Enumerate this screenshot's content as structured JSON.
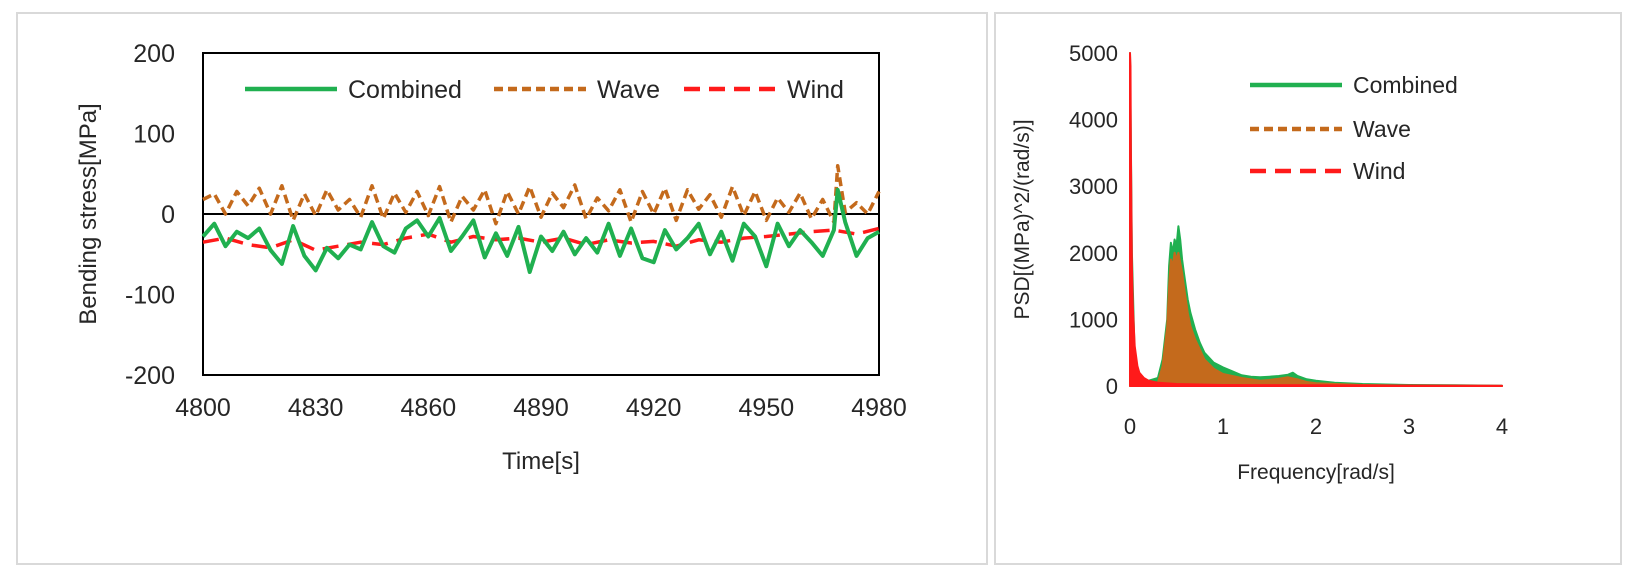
{
  "colors": {
    "combined": "#20b050",
    "wave": "#c46a1c",
    "wind": "#ff1a1a",
    "frame": "#d9d9d9"
  },
  "chart_data": [
    {
      "type": "line",
      "title": "",
      "xlabel": "Time[s]",
      "ylabel": "Bending stress[MPa]",
      "xlim": [
        4800,
        4980
      ],
      "ylim": [
        -200,
        200
      ],
      "xticks": [
        4800,
        4830,
        4860,
        4890,
        4920,
        4950,
        4980
      ],
      "yticks": [
        -200,
        -100,
        0,
        100,
        200
      ],
      "legend_position": "top",
      "series": [
        {
          "name": "Combined",
          "style": "solid",
          "x": [
            4800,
            4803,
            4806,
            4809,
            4812,
            4815,
            4818,
            4821,
            4824,
            4827,
            4830,
            4833,
            4836,
            4839,
            4842,
            4845,
            4848,
            4851,
            4854,
            4857,
            4860,
            4863,
            4866,
            4869,
            4872,
            4875,
            4878,
            4881,
            4884,
            4887,
            4890,
            4893,
            4896,
            4899,
            4902,
            4905,
            4908,
            4911,
            4914,
            4917,
            4920,
            4923,
            4926,
            4929,
            4932,
            4935,
            4938,
            4941,
            4944,
            4947,
            4950,
            4953,
            4956,
            4959,
            4962,
            4965,
            4968,
            4969,
            4971,
            4974,
            4977,
            4980
          ],
          "values": [
            -28,
            -12,
            -40,
            -22,
            -30,
            -18,
            -45,
            -62,
            -15,
            -52,
            -70,
            -42,
            -55,
            -38,
            -44,
            -10,
            -40,
            -48,
            -18,
            -8,
            -28,
            -5,
            -46,
            -28,
            -8,
            -54,
            -24,
            -52,
            -16,
            -72,
            -28,
            -46,
            -22,
            -50,
            -30,
            -48,
            -12,
            -52,
            -18,
            -55,
            -60,
            -20,
            -44,
            -30,
            -12,
            -50,
            -22,
            -58,
            -12,
            -28,
            -65,
            -12,
            -40,
            -20,
            -35,
            -52,
            -20,
            30,
            -10,
            -52,
            -30,
            -22
          ]
        },
        {
          "name": "Wave",
          "style": "dash",
          "x": [
            4800,
            4803,
            4806,
            4809,
            4812,
            4815,
            4818,
            4821,
            4824,
            4827,
            4830,
            4833,
            4836,
            4839,
            4842,
            4845,
            4848,
            4851,
            4854,
            4857,
            4860,
            4863,
            4866,
            4869,
            4872,
            4875,
            4878,
            4881,
            4884,
            4887,
            4890,
            4893,
            4896,
            4899,
            4902,
            4905,
            4908,
            4911,
            4914,
            4917,
            4920,
            4923,
            4926,
            4929,
            4932,
            4935,
            4938,
            4941,
            4944,
            4947,
            4950,
            4953,
            4956,
            4959,
            4962,
            4965,
            4968,
            4969,
            4971,
            4974,
            4977,
            4980
          ],
          "values": [
            18,
            25,
            0,
            28,
            10,
            32,
            0,
            35,
            -8,
            25,
            -2,
            30,
            5,
            18,
            -4,
            35,
            -6,
            26,
            2,
            28,
            -2,
            34,
            -10,
            22,
            5,
            30,
            -12,
            28,
            0,
            34,
            -4,
            26,
            8,
            36,
            -6,
            20,
            4,
            30,
            -10,
            28,
            0,
            32,
            -8,
            30,
            6,
            24,
            -4,
            34,
            -2,
            28,
            -8,
            20,
            2,
            26,
            -6,
            18,
            -10,
            60,
            2,
            14,
            0,
            28
          ]
        },
        {
          "name": "Wind",
          "style": "dash",
          "x": [
            4800,
            4806,
            4812,
            4818,
            4824,
            4830,
            4836,
            4842,
            4848,
            4854,
            4860,
            4866,
            4872,
            4878,
            4884,
            4890,
            4896,
            4902,
            4908,
            4914,
            4920,
            4926,
            4932,
            4938,
            4944,
            4950,
            4956,
            4962,
            4968,
            4974,
            4980
          ],
          "values": [
            -35,
            -30,
            -38,
            -42,
            -32,
            -45,
            -40,
            -35,
            -38,
            -30,
            -25,
            -35,
            -28,
            -32,
            -30,
            -35,
            -30,
            -38,
            -32,
            -36,
            -34,
            -40,
            -32,
            -35,
            -30,
            -28,
            -25,
            -22,
            -20,
            -25,
            -18
          ]
        }
      ]
    },
    {
      "type": "area",
      "title": "",
      "xlabel": "Frequency[rad/s]",
      "ylabel": "PSD[(MPa)^2/(rad/s)]",
      "xlim": [
        0,
        4
      ],
      "ylim": [
        0,
        5000
      ],
      "xticks": [
        0,
        1,
        2,
        3,
        4
      ],
      "yticks": [
        0,
        1000,
        2000,
        3000,
        4000,
        5000
      ],
      "legend_position": "top-right",
      "series": [
        {
          "name": "Combined",
          "style": "solid",
          "x": [
            0,
            0.02,
            0.05,
            0.1,
            0.15,
            0.2,
            0.3,
            0.35,
            0.4,
            0.42,
            0.44,
            0.46,
            0.48,
            0.5,
            0.52,
            0.54,
            0.56,
            0.58,
            0.6,
            0.62,
            0.65,
            0.7,
            0.75,
            0.8,
            0.9,
            1.0,
            1.1,
            1.2,
            1.3,
            1.4,
            1.5,
            1.6,
            1.7,
            1.75,
            1.8,
            1.9,
            2.0,
            2.2,
            2.5,
            3.0,
            3.5,
            4.0
          ],
          "values": [
            5000,
            2000,
            400,
            150,
            100,
            80,
            120,
            400,
            1000,
            1800,
            2150,
            2000,
            2200,
            2100,
            2400,
            2200,
            1900,
            1700,
            1500,
            1300,
            1100,
            850,
            650,
            500,
            350,
            280,
            220,
            160,
            140,
            130,
            140,
            150,
            170,
            200,
            150,
            100,
            80,
            50,
            30,
            15,
            10,
            5
          ]
        },
        {
          "name": "Wave",
          "style": "dash",
          "x": [
            0,
            0.2,
            0.3,
            0.35,
            0.4,
            0.42,
            0.44,
            0.46,
            0.48,
            0.5,
            0.52,
            0.54,
            0.56,
            0.58,
            0.6,
            0.62,
            0.65,
            0.7,
            0.75,
            0.8,
            0.9,
            1.0,
            1.2,
            1.4,
            1.5,
            1.6,
            1.7,
            1.8,
            1.9,
            2.0,
            2.5,
            3.0,
            4.0
          ],
          "values": [
            0,
            0,
            50,
            300,
            900,
            1500,
            1900,
            1800,
            2000,
            1900,
            2000,
            1850,
            1700,
            1500,
            1300,
            1100,
            900,
            700,
            550,
            400,
            260,
            180,
            120,
            80,
            90,
            110,
            130,
            100,
            60,
            40,
            15,
            5,
            0
          ]
        },
        {
          "name": "Wind",
          "style": "dash",
          "x": [
            0,
            0.005,
            0.01,
            0.02,
            0.03,
            0.05,
            0.08,
            0.1,
            0.15,
            0.2,
            0.3,
            0.5,
            1.0,
            2.0,
            4.0
          ],
          "values": [
            5000,
            4800,
            3500,
            1800,
            1200,
            600,
            300,
            200,
            120,
            80,
            50,
            30,
            15,
            10,
            5
          ]
        }
      ]
    }
  ]
}
